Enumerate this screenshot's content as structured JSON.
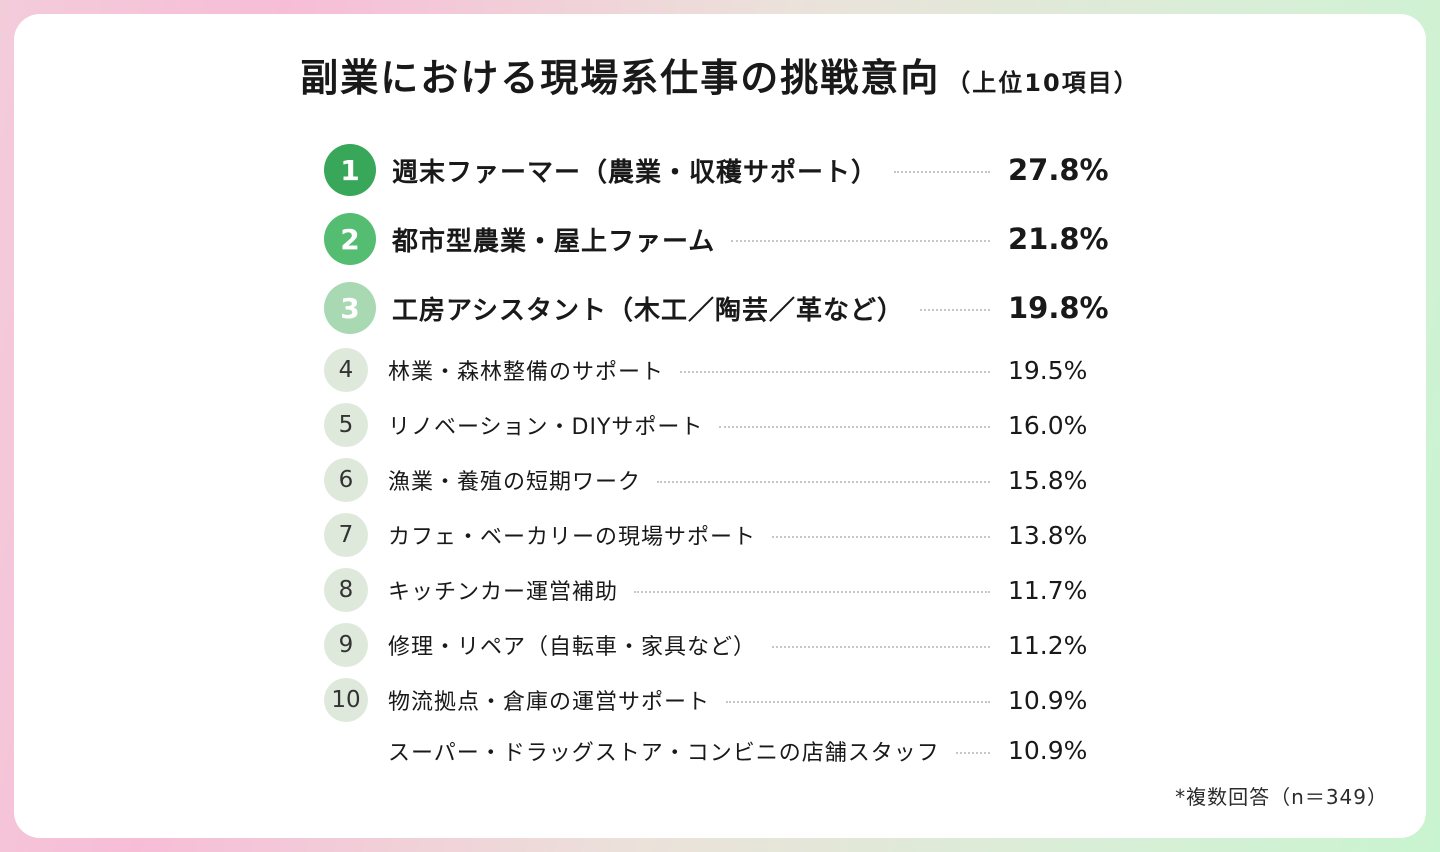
{
  "title": {
    "main": "副業における現場系仕事の挑戦意向",
    "suffix": "（上位10項目）"
  },
  "footnote": "*複数回答（n＝349）",
  "colors": {
    "rank1": "#39A75A",
    "rank2": "#55BD72",
    "rank3": "#A9D9B2",
    "rank_other_bg": "#DFE9DB",
    "rank_other_text": "#333333",
    "leader_dots": "#C6C6C6",
    "ink": "#191919",
    "frame_pink_top": "#F3CCDA",
    "frame_pink": "#F7BDD7",
    "frame_mid": "#EBE2DA",
    "frame_green": "#D7EFD6",
    "frame_green_top": "#C9F4D0"
  },
  "chart_data": {
    "type": "table",
    "title": "副業における現場系仕事の挑戦意向（上位10項目）",
    "note": "*複数回答（n＝349）",
    "unit": "%",
    "items": [
      {
        "rank": "1",
        "label": "週末ファーマー（農業・収穫サポート）",
        "value": 27.8,
        "value_label": "27.8%"
      },
      {
        "rank": "2",
        "label": "都市型農業・屋上ファーム",
        "value": 21.8,
        "value_label": "21.8%"
      },
      {
        "rank": "3",
        "label": "工房アシスタント（木工／陶芸／革など）",
        "value": 19.8,
        "value_label": "19.8%"
      },
      {
        "rank": "4",
        "label": "林業・森林整備のサポート",
        "value": 19.5,
        "value_label": "19.5%"
      },
      {
        "rank": "5",
        "label": "リノベーション・DIYサポート",
        "value": 16.0,
        "value_label": "16.0%"
      },
      {
        "rank": "6",
        "label": "漁業・養殖の短期ワーク",
        "value": 15.8,
        "value_label": "15.8%"
      },
      {
        "rank": "7",
        "label": "カフェ・ベーカリーの現場サポート",
        "value": 13.8,
        "value_label": "13.8%"
      },
      {
        "rank": "8",
        "label": "キッチンカー運営補助",
        "value": 11.7,
        "value_label": "11.7%"
      },
      {
        "rank": "9",
        "label": "修理・リペア（自転車・家具など）",
        "value": 11.2,
        "value_label": "11.2%"
      },
      {
        "rank": "10",
        "label": "物流拠点・倉庫の運営サポート",
        "value": 10.9,
        "value_label": "10.9%"
      },
      {
        "rank": "",
        "label": "スーパー・ドラッグストア・コンビニの店舗スタッフ",
        "value": 10.9,
        "value_label": "10.9%"
      }
    ]
  }
}
